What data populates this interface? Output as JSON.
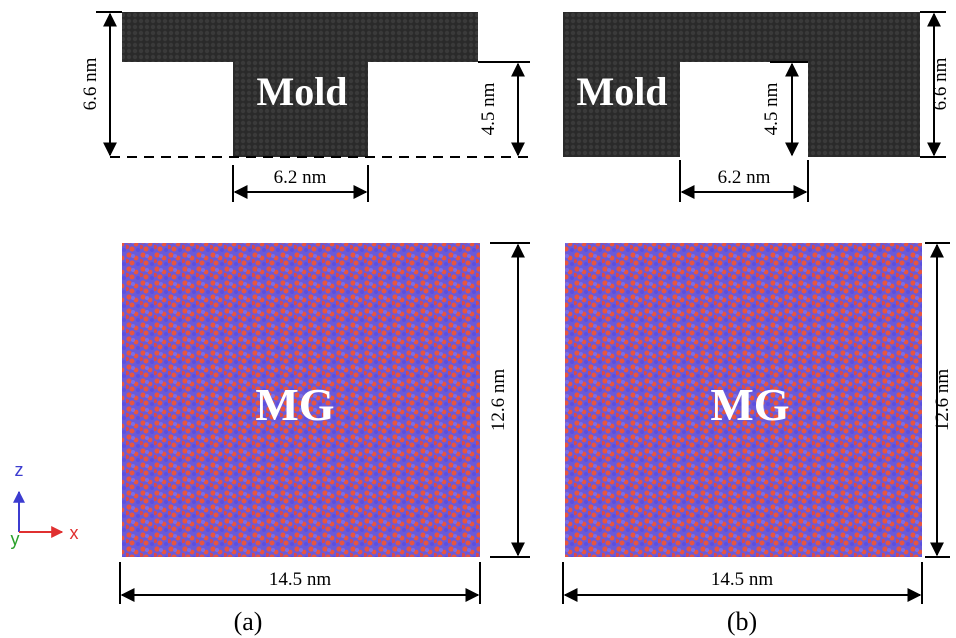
{
  "panels": [
    {
      "label": "(a)",
      "mold": {
        "label": "Mold",
        "height": "6.6 nm",
        "step_height": "4.5 nm",
        "width": "6.2 nm"
      },
      "sample": {
        "label": "MG",
        "height": "12.6 nm",
        "width": "14.5 nm"
      }
    },
    {
      "label": "(b)",
      "mold": {
        "label": "Mold",
        "height": "6.6 nm",
        "step_height": "4.5 nm",
        "width": "6.2 nm"
      },
      "sample": {
        "label": "MG",
        "height": "12.6 nm",
        "width": "14.5 nm"
      }
    }
  ],
  "axes": {
    "z": "z",
    "y": "y",
    "x": "x"
  }
}
